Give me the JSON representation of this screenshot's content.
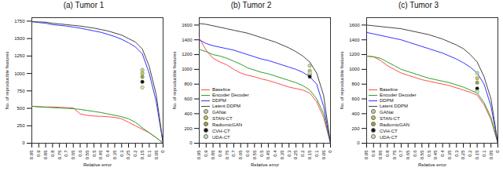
{
  "chart_data": [
    {
      "type": "line",
      "title": "(a) Tumor 1",
      "x_label": "Relative error",
      "y_label": "No. of reproducible features",
      "x": [
        0.95,
        0.9,
        0.85,
        0.8,
        0.75,
        0.7,
        0.65,
        0.6,
        0.55,
        0.5,
        0.45,
        0.4,
        0.35,
        0.3,
        0.25,
        0.2,
        0.15,
        0.1,
        0.05,
        0
      ],
      "xlim": [
        0.95,
        0
      ],
      "xticks": [
        0.95,
        0.9,
        0.85,
        0.8,
        0.75,
        0.7,
        0.65,
        0.6,
        0.55,
        0.5,
        0.45,
        0.4,
        0.35,
        0.3,
        0.25,
        0.2,
        0.15,
        0.1,
        0.05,
        0
      ],
      "ylim": [
        0,
        1800
      ],
      "yticks": [
        0,
        250,
        500,
        750,
        1000,
        1250,
        1500,
        1750
      ],
      "series": [
        {
          "name": "Baseline",
          "color": "#ff4d4d",
          "values": [
            530,
            525,
            520,
            520,
            515,
            510,
            505,
            420,
            400,
            390,
            385,
            380,
            370,
            350,
            300,
            250,
            200,
            150,
            80,
            0
          ]
        },
        {
          "name": "Encoder Decoder",
          "color": "#2ca02c",
          "values": [
            530,
            520,
            515,
            510,
            505,
            500,
            495,
            485,
            470,
            455,
            440,
            420,
            400,
            380,
            350,
            300,
            220,
            150,
            80,
            0
          ]
        },
        {
          "name": "DDPM",
          "color": "#3333ff",
          "values": [
            1745,
            1730,
            1720,
            1700,
            1690,
            1680,
            1665,
            1650,
            1630,
            1610,
            1590,
            1560,
            1530,
            1490,
            1440,
            1380,
            1280,
            1000,
            600,
            0
          ]
        },
        {
          "name": "Latent DDPM",
          "color": "#444444",
          "values": [
            1740,
            1740,
            1735,
            1720,
            1710,
            1700,
            1690,
            1680,
            1665,
            1650,
            1630,
            1610,
            1580,
            1550,
            1500,
            1450,
            1350,
            1100,
            700,
            0
          ]
        },
        {
          "name": "GANai",
          "color": "#b5d99c",
          "type": "scatter",
          "marker": "circle",
          "x": [
            0.15
          ],
          "values": [
            1050
          ]
        },
        {
          "name": "STAN-CT",
          "color": "#c8c84a",
          "type": "scatter",
          "marker": "circle",
          "x": [
            0.15
          ],
          "values": [
            1000
          ]
        },
        {
          "name": "RadiomicGAN",
          "color": "#9aa83a",
          "type": "scatter",
          "marker": "circle",
          "x": [
            0.15
          ],
          "values": [
            950
          ]
        },
        {
          "name": "CVH-CT",
          "color": "#111111",
          "type": "scatter",
          "marker": "circle",
          "x": [
            0.15
          ],
          "values": [
            880
          ]
        },
        {
          "name": "UDA-CT",
          "color": "#cde6b0",
          "type": "scatter",
          "marker": "circle",
          "x": [
            0.15
          ],
          "values": [
            800
          ]
        }
      ]
    },
    {
      "type": "line",
      "title": "(b) Tumor 2",
      "x_label": "Relative error",
      "y_label": "No. of reproducible features",
      "legend": "lower left",
      "x": [
        0.95,
        0.9,
        0.85,
        0.8,
        0.75,
        0.7,
        0.65,
        0.6,
        0.55,
        0.5,
        0.45,
        0.4,
        0.35,
        0.3,
        0.25,
        0.2,
        0.15,
        0.1,
        0.05,
        0
      ],
      "xlim": [
        0.95,
        0
      ],
      "xticks": [
        0.95,
        0.9,
        0.85,
        0.8,
        0.75,
        0.7,
        0.65,
        0.6,
        0.55,
        0.5,
        0.45,
        0.4,
        0.35,
        0.3,
        0.25,
        0.2,
        0.15,
        0.1,
        0.05,
        0
      ],
      "ylim": [
        0,
        1700
      ],
      "yticks": [
        0,
        200,
        400,
        600,
        800,
        1000,
        1200,
        1400,
        1600
      ],
      "series": [
        {
          "name": "Baseline",
          "color": "#ff4d4d",
          "values": [
            1420,
            1260,
            1150,
            1100,
            1060,
            1000,
            950,
            920,
            900,
            870,
            850,
            820,
            790,
            760,
            740,
            720,
            680,
            560,
            350,
            0
          ]
        },
        {
          "name": "Encoder Decoder",
          "color": "#2ca02c",
          "values": [
            1270,
            1240,
            1200,
            1180,
            1150,
            1110,
            1070,
            1020,
            990,
            960,
            940,
            910,
            880,
            850,
            820,
            780,
            720,
            600,
            400,
            0
          ]
        },
        {
          "name": "DDPM",
          "color": "#3333ff",
          "values": [
            1400,
            1350,
            1320,
            1300,
            1280,
            1260,
            1230,
            1200,
            1170,
            1140,
            1120,
            1090,
            1060,
            1030,
            1000,
            960,
            900,
            800,
            500,
            0
          ]
        },
        {
          "name": "Latent DDPM",
          "color": "#444444",
          "values": [
            1620,
            1610,
            1590,
            1570,
            1550,
            1530,
            1510,
            1490,
            1460,
            1430,
            1400,
            1370,
            1330,
            1290,
            1240,
            1180,
            1100,
            950,
            650,
            0
          ]
        },
        {
          "name": "GANai",
          "color": "#b5d99c",
          "type": "scatter",
          "marker": "circle",
          "x": [
            0.15
          ],
          "values": [
            1050
          ]
        },
        {
          "name": "STAN-CT",
          "color": "#c8c84a",
          "type": "scatter",
          "marker": "circle",
          "x": [
            0.15
          ],
          "values": [
            980
          ]
        },
        {
          "name": "RadiomicGAN",
          "color": "#9aa83a",
          "type": "scatter",
          "marker": "circle",
          "x": [
            0.15
          ],
          "values": [
            930
          ]
        },
        {
          "name": "CVH-CT",
          "color": "#111111",
          "type": "scatter",
          "marker": "circle",
          "x": [
            0.15
          ],
          "values": [
            900
          ]
        },
        {
          "name": "UDA-CT",
          "color": "#cde6b0",
          "type": "scatter",
          "marker": "circle",
          "x": [
            0.15
          ],
          "values": [
            950
          ]
        }
      ]
    },
    {
      "type": "line",
      "title": "(c) Tumor 3",
      "x_label": "Relative error",
      "y_label": "No. of reproducible features",
      "legend": "lower left",
      "x": [
        0.95,
        0.9,
        0.85,
        0.8,
        0.75,
        0.7,
        0.65,
        0.6,
        0.55,
        0.5,
        0.45,
        0.4,
        0.35,
        0.3,
        0.25,
        0.2,
        0.15,
        0.1,
        0.05,
        0
      ],
      "xlim": [
        0.95,
        0
      ],
      "xticks": [
        0.95,
        0.9,
        0.85,
        0.8,
        0.75,
        0.7,
        0.65,
        0.6,
        0.55,
        0.5,
        0.45,
        0.4,
        0.35,
        0.3,
        0.25,
        0.2,
        0.15,
        0.1,
        0.05,
        0
      ],
      "ylim": [
        0,
        1700
      ],
      "yticks": [
        0,
        200,
        400,
        600,
        800,
        1000,
        1200,
        1400,
        1600
      ],
      "series": [
        {
          "name": "Baseline",
          "color": "#ff4d4d",
          "values": [
            1180,
            1170,
            1120,
            1050,
            1000,
            950,
            920,
            890,
            860,
            840,
            820,
            800,
            780,
            750,
            720,
            690,
            650,
            520,
            320,
            0
          ]
        },
        {
          "name": "Encoder Decoder",
          "color": "#2ca02c",
          "values": [
            1180,
            1170,
            1150,
            1100,
            1050,
            1000,
            970,
            940,
            910,
            880,
            860,
            840,
            820,
            790,
            760,
            720,
            680,
            550,
            350,
            0
          ]
        },
        {
          "name": "DDPM",
          "color": "#3333ff",
          "values": [
            1500,
            1480,
            1460,
            1440,
            1420,
            1400,
            1370,
            1340,
            1310,
            1280,
            1250,
            1220,
            1180,
            1140,
            1090,
            1030,
            950,
            800,
            500,
            0
          ]
        },
        {
          "name": "Latent DDPM",
          "color": "#444444",
          "values": [
            1600,
            1590,
            1580,
            1570,
            1560,
            1550,
            1530,
            1510,
            1490,
            1470,
            1440,
            1410,
            1370,
            1330,
            1280,
            1200,
            1100,
            900,
            600,
            0
          ]
        },
        {
          "name": "GANai",
          "color": "#b5d99c",
          "type": "scatter",
          "marker": "circle",
          "x": [
            0.15
          ],
          "values": [
            950
          ]
        },
        {
          "name": "STAN-CT",
          "color": "#c8c84a",
          "type": "scatter",
          "marker": "circle",
          "x": [
            0.15
          ],
          "values": [
            880
          ]
        },
        {
          "name": "RadiomicGAN",
          "color": "#9aa83a",
          "type": "scatter",
          "marker": "circle",
          "x": [
            0.15
          ],
          "values": [
            820
          ]
        },
        {
          "name": "CVH-CT",
          "color": "#111111",
          "type": "scatter",
          "marker": "circle",
          "x": [
            0.15
          ],
          "values": [
            740
          ]
        },
        {
          "name": "UDA-CT",
          "color": "#cde6b0",
          "type": "scatter",
          "marker": "circle",
          "x": [
            0.15
          ],
          "values": [
            700
          ]
        }
      ]
    }
  ]
}
